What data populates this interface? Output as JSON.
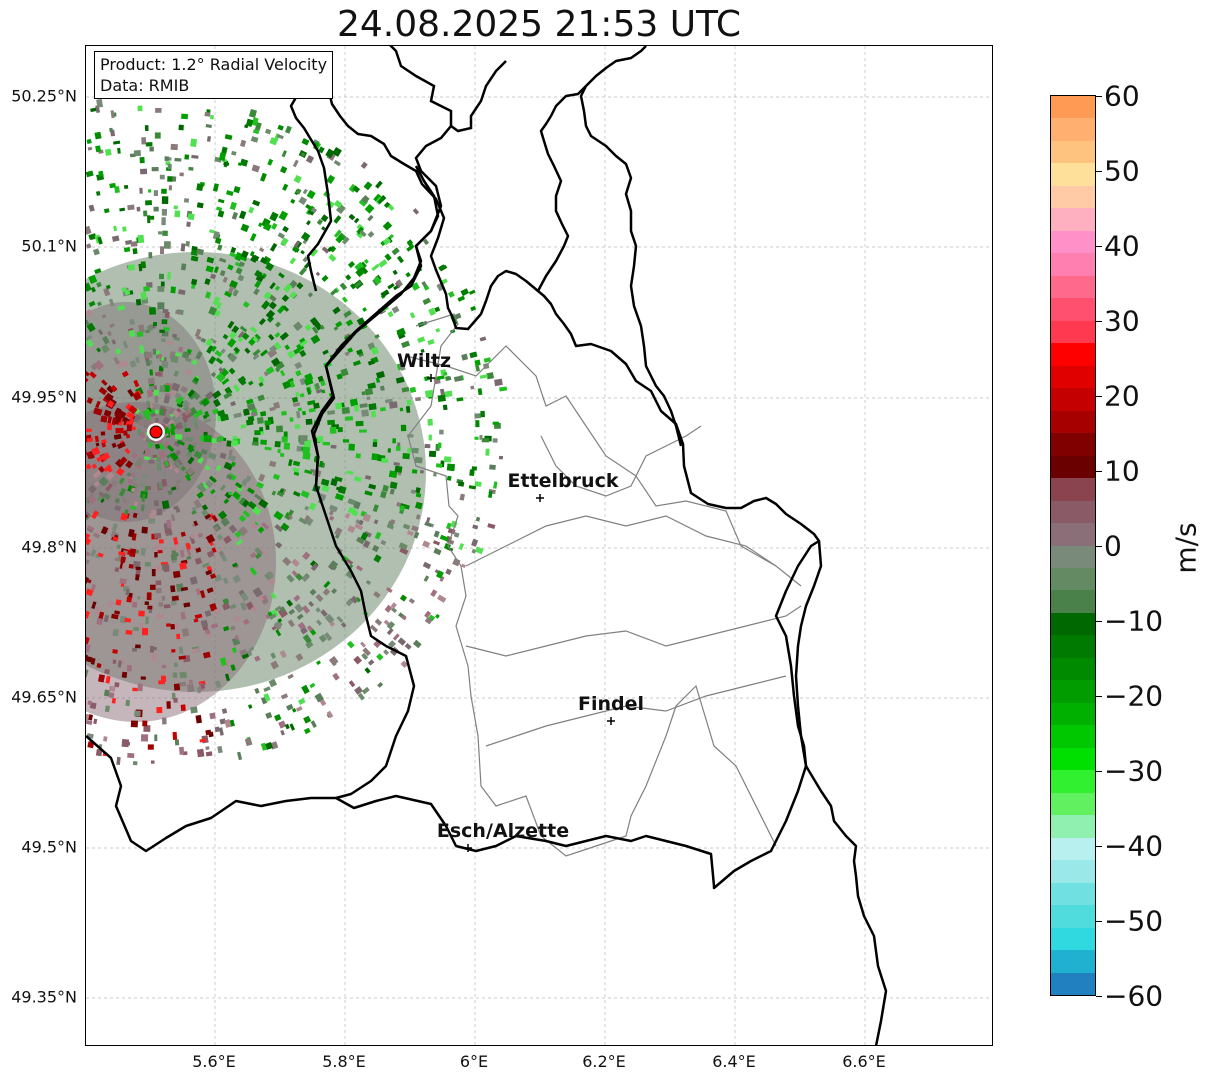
{
  "title": "24.08.2025 21:53 UTC",
  "info": {
    "product": "Product: 1.2° Radial Velocity",
    "data_source": "Data: RMIB"
  },
  "lat_labels": [
    "50.25°N",
    "50.1°N",
    "49.95°N",
    "49.8°N",
    "49.65°N",
    "49.5°N",
    "49.35°N"
  ],
  "lon_labels": [
    "5.6°E",
    "5.8°E",
    "6°E",
    "6.2°E",
    "6.4°E",
    "6.6°E"
  ],
  "cities": [
    {
      "name": "Wiltz"
    },
    {
      "name": "Ettelbruck"
    },
    {
      "name": "Findel"
    },
    {
      "name": "Esch/Alzette"
    }
  ],
  "colorbar": {
    "unit": "m/s",
    "ticks": [
      "60",
      "50",
      "40",
      "30",
      "20",
      "10",
      "0",
      "−10",
      "−20",
      "−30",
      "−40",
      "−50",
      "−60"
    ],
    "range": [
      -60,
      60
    ],
    "colors_top_to_bottom": [
      "#ff9a55",
      "#ffb070",
      "#ffc380",
      "#ffe09a",
      "#ffcaa6",
      "#ffb0c0",
      "#ff90c8",
      "#ff80b0",
      "#ff6a8c",
      "#ff5070",
      "#ff3a50",
      "#ff0000",
      "#e00000",
      "#c40000",
      "#a60000",
      "#800000",
      "#6a0000",
      "#8a4450",
      "#8a5a66",
      "#8a6e78",
      "#7a8a7a",
      "#648a64",
      "#4a804a",
      "#006800",
      "#007a00",
      "#008a00",
      "#009c00",
      "#00b000",
      "#00c800",
      "#00e000",
      "#30f030",
      "#60f060",
      "#90f0b0",
      "#b8f0f0",
      "#9ae8e8",
      "#70e0e0",
      "#50dcdc",
      "#30d8e0",
      "#20b0d0",
      "#2080c0"
    ]
  },
  "colors": {
    "country_border": "#000000",
    "canton_border": "#808080",
    "grid": "#bbbbbb",
    "radar_site": "#ff0000"
  }
}
